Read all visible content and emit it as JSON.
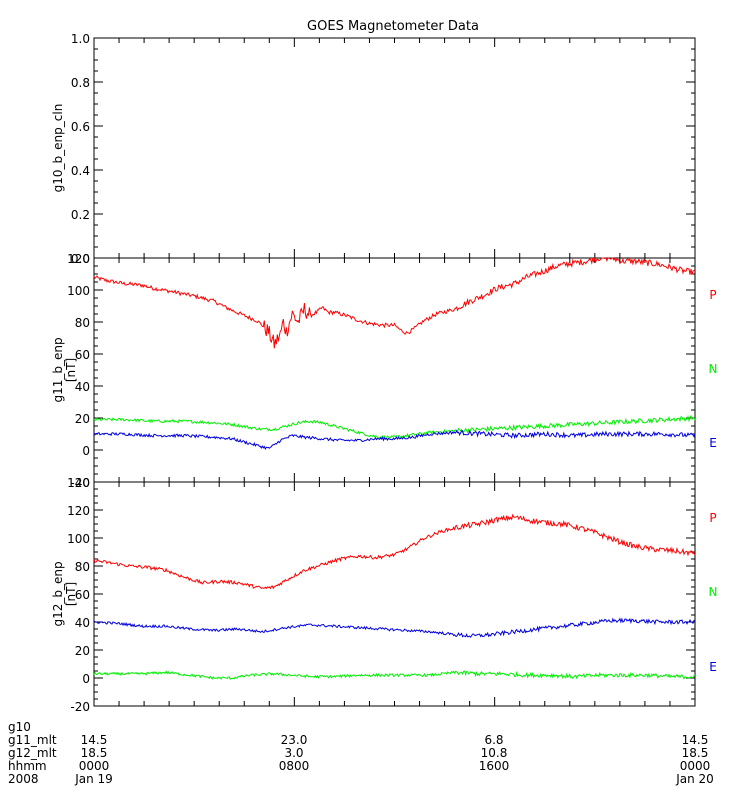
{
  "chart_data": {
    "type": "line",
    "title": "GOES Magnetometer Data",
    "panels": [
      {
        "id": "g10",
        "ylabel": "g10_b_enp_cln",
        "unit": "",
        "ylim": [
          0,
          1.0
        ],
        "yticks": [
          "0.0",
          "0.2",
          "0.4",
          "0.6",
          "0.8",
          "1.0"
        ],
        "series": []
      },
      {
        "id": "g11",
        "ylabel": "g11_b_enp",
        "unit": "[nT]",
        "ylim": [
          -20,
          120
        ],
        "yticks": [
          "-20",
          "0",
          "20",
          "40",
          "60",
          "80",
          "100",
          "120"
        ],
        "series": [
          {
            "name": "P",
            "color": "#ff0000",
            "values": [
              [
                0.0,
                108
              ],
              [
                0.02,
                106
              ],
              [
                0.05,
                104
              ],
              [
                0.08,
                103
              ],
              [
                0.1,
                101
              ],
              [
                0.13,
                99
              ],
              [
                0.17,
                96
              ],
              [
                0.2,
                93
              ],
              [
                0.22,
                89
              ],
              [
                0.25,
                84
              ],
              [
                0.27,
                81
              ],
              [
                0.28,
                78
              ],
              [
                0.29,
                74
              ],
              [
                0.3,
                66
              ],
              [
                0.31,
                72
              ],
              [
                0.315,
                80
              ],
              [
                0.32,
                74
              ],
              [
                0.33,
                85
              ],
              [
                0.34,
                80
              ],
              [
                0.35,
                88
              ],
              [
                0.36,
                84
              ],
              [
                0.37,
                86
              ],
              [
                0.38,
                89
              ],
              [
                0.39,
                86
              ],
              [
                0.4,
                86
              ],
              [
                0.42,
                84
              ],
              [
                0.44,
                81
              ],
              [
                0.46,
                79
              ],
              [
                0.48,
                78
              ],
              [
                0.5,
                78
              ],
              [
                0.51,
                75
              ],
              [
                0.52,
                73
              ],
              [
                0.53,
                75
              ],
              [
                0.55,
                81
              ],
              [
                0.57,
                85
              ],
              [
                0.6,
                88
              ],
              [
                0.62,
                92
              ],
              [
                0.65,
                97
              ],
              [
                0.67,
                101
              ],
              [
                0.7,
                104
              ],
              [
                0.72,
                108
              ],
              [
                0.75,
                112
              ],
              [
                0.77,
                115
              ],
              [
                0.8,
                117
              ],
              [
                0.82,
                118
              ],
              [
                0.84,
                120
              ],
              [
                0.86,
                120
              ],
              [
                0.88,
                118
              ],
              [
                0.9,
                118
              ],
              [
                0.92,
                117
              ],
              [
                0.94,
                116
              ],
              [
                0.96,
                114
              ],
              [
                0.98,
                112
              ],
              [
                1.0,
                111
              ]
            ]
          },
          {
            "name": "N",
            "color": "#00ee00",
            "values": [
              [
                0.0,
                19
              ],
              [
                0.05,
                19
              ],
              [
                0.1,
                18
              ],
              [
                0.15,
                18
              ],
              [
                0.2,
                17
              ],
              [
                0.23,
                16
              ],
              [
                0.26,
                14
              ],
              [
                0.28,
                13
              ],
              [
                0.3,
                13
              ],
              [
                0.32,
                15
              ],
              [
                0.34,
                17
              ],
              [
                0.36,
                18
              ],
              [
                0.38,
                17
              ],
              [
                0.4,
                15
              ],
              [
                0.42,
                13
              ],
              [
                0.44,
                11
              ],
              [
                0.46,
                9
              ],
              [
                0.48,
                8
              ],
              [
                0.5,
                8
              ],
              [
                0.52,
                9
              ],
              [
                0.54,
                10
              ],
              [
                0.56,
                11
              ],
              [
                0.6,
                12
              ],
              [
                0.65,
                13
              ],
              [
                0.7,
                14
              ],
              [
                0.75,
                15
              ],
              [
                0.8,
                16
              ],
              [
                0.85,
                17
              ],
              [
                0.9,
                18
              ],
              [
                0.95,
                19
              ],
              [
                1.0,
                20
              ]
            ]
          },
          {
            "name": "E",
            "color": "#0000dd",
            "values": [
              [
                0.0,
                10
              ],
              [
                0.05,
                10
              ],
              [
                0.1,
                9
              ],
              [
                0.15,
                9
              ],
              [
                0.2,
                8
              ],
              [
                0.23,
                7
              ],
              [
                0.25,
                5
              ],
              [
                0.27,
                3
              ],
              [
                0.29,
                1
              ],
              [
                0.3,
                3
              ],
              [
                0.31,
                6
              ],
              [
                0.33,
                9
              ],
              [
                0.35,
                8
              ],
              [
                0.38,
                7
              ],
              [
                0.41,
                6
              ],
              [
                0.44,
                6
              ],
              [
                0.47,
                7
              ],
              [
                0.5,
                7
              ],
              [
                0.53,
                8
              ],
              [
                0.56,
                10
              ],
              [
                0.6,
                11
              ],
              [
                0.65,
                10
              ],
              [
                0.7,
                9
              ],
              [
                0.75,
                10
              ],
              [
                0.8,
                9
              ],
              [
                0.85,
                10
              ],
              [
                0.9,
                10
              ],
              [
                0.95,
                10
              ],
              [
                1.0,
                9
              ]
            ]
          }
        ]
      },
      {
        "id": "g12",
        "ylabel": "g12_b_enp",
        "unit": "[nT]",
        "ylim": [
          -20,
          140
        ],
        "yticks": [
          "-20",
          "0",
          "20",
          "40",
          "60",
          "80",
          "100",
          "120",
          "140"
        ],
        "series": [
          {
            "name": "P",
            "color": "#ff0000",
            "values": [
              [
                0.0,
                84
              ],
              [
                0.03,
                82
              ],
              [
                0.06,
                80
              ],
              [
                0.09,
                79
              ],
              [
                0.12,
                77
              ],
              [
                0.15,
                72
              ],
              [
                0.18,
                68
              ],
              [
                0.21,
                69
              ],
              [
                0.24,
                68
              ],
              [
                0.26,
                66
              ],
              [
                0.28,
                64
              ],
              [
                0.3,
                65
              ],
              [
                0.32,
                70
              ],
              [
                0.35,
                77
              ],
              [
                0.38,
                81
              ],
              [
                0.41,
                85
              ],
              [
                0.44,
                87
              ],
              [
                0.47,
                86
              ],
              [
                0.5,
                88
              ],
              [
                0.52,
                92
              ],
              [
                0.55,
                100
              ],
              [
                0.58,
                105
              ],
              [
                0.61,
                108
              ],
              [
                0.64,
                110
              ],
              [
                0.67,
                113
              ],
              [
                0.7,
                115
              ],
              [
                0.72,
                113
              ],
              [
                0.75,
                111
              ],
              [
                0.78,
                110
              ],
              [
                0.81,
                107
              ],
              [
                0.84,
                103
              ],
              [
                0.87,
                98
              ],
              [
                0.9,
                94
              ],
              [
                0.93,
                92
              ],
              [
                0.96,
                91
              ],
              [
                1.0,
                89
              ]
            ]
          },
          {
            "name": "N",
            "color": "#00ee00",
            "values": [
              [
                0.0,
                3
              ],
              [
                0.04,
                3
              ],
              [
                0.08,
                3
              ],
              [
                0.12,
                4
              ],
              [
                0.16,
                2
              ],
              [
                0.2,
                0
              ],
              [
                0.23,
                0
              ],
              [
                0.26,
                2
              ],
              [
                0.3,
                3
              ],
              [
                0.33,
                2
              ],
              [
                0.36,
                1
              ],
              [
                0.4,
                1
              ],
              [
                0.44,
                2
              ],
              [
                0.48,
                2
              ],
              [
                0.52,
                2
              ],
              [
                0.56,
                2
              ],
              [
                0.6,
                4
              ],
              [
                0.64,
                3
              ],
              [
                0.68,
                3
              ],
              [
                0.72,
                2
              ],
              [
                0.76,
                2
              ],
              [
                0.8,
                1
              ],
              [
                0.84,
                2
              ],
              [
                0.88,
                2
              ],
              [
                0.92,
                2
              ],
              [
                0.96,
                1
              ],
              [
                1.0,
                1
              ]
            ]
          },
          {
            "name": "E",
            "color": "#0000dd",
            "values": [
              [
                0.0,
                40
              ],
              [
                0.04,
                39
              ],
              [
                0.08,
                37
              ],
              [
                0.12,
                37
              ],
              [
                0.16,
                35
              ],
              [
                0.2,
                34
              ],
              [
                0.24,
                35
              ],
              [
                0.28,
                33
              ],
              [
                0.32,
                36
              ],
              [
                0.36,
                38
              ],
              [
                0.4,
                37
              ],
              [
                0.44,
                36
              ],
              [
                0.48,
                35
              ],
              [
                0.52,
                34
              ],
              [
                0.56,
                33
              ],
              [
                0.6,
                31
              ],
              [
                0.63,
                30
              ],
              [
                0.66,
                31
              ],
              [
                0.7,
                33
              ],
              [
                0.74,
                35
              ],
              [
                0.78,
                37
              ],
              [
                0.82,
                39
              ],
              [
                0.86,
                41
              ],
              [
                0.9,
                41
              ],
              [
                0.94,
                40
              ],
              [
                0.97,
                40
              ],
              [
                1.0,
                40
              ]
            ]
          }
        ]
      }
    ],
    "x_axis_rows": [
      {
        "label": "g10",
        "values": [
          "",
          "",
          "",
          ""
        ]
      },
      {
        "label": "g11_mlt",
        "values": [
          "14.5",
          "23.0",
          "6.8",
          "14.5"
        ]
      },
      {
        "label": "g12_mlt",
        "values": [
          "18.5",
          "3.0",
          "10.8",
          "18.5"
        ]
      },
      {
        "label": "hhmm",
        "values": [
          "0000",
          "0800",
          "1600",
          "0000"
        ]
      },
      {
        "label": "2008",
        "values": [
          "Jan 19",
          "",
          "",
          "Jan 20"
        ]
      }
    ],
    "xrange_hours": [
      0,
      24
    ],
    "grid": false
  }
}
